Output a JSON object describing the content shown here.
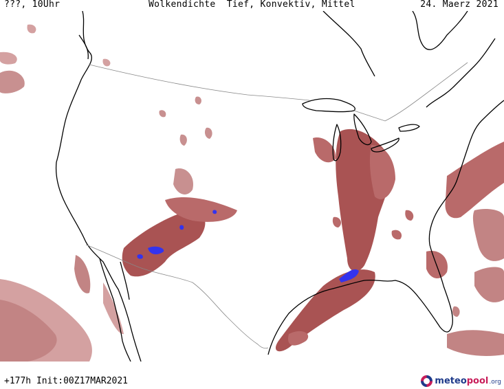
{
  "header": {
    "left": "???, 10Uhr",
    "center": "Wolkendichte  Tief, Konvektiv, Mittel",
    "right": "24. Maerz 2021"
  },
  "footer": {
    "left": "+177h Init:00Z17MAR2021",
    "logo_prefix": "meteo",
    "logo_highlight": "pool",
    "logo_suffix": ".org"
  },
  "colors": {
    "cloud_low": "#d4a1a1",
    "cloud_mid": "#b96a6a",
    "cloud_high": "#9c4141",
    "convective": "#3333ee",
    "coastline": "#000000",
    "border": "#888888"
  }
}
